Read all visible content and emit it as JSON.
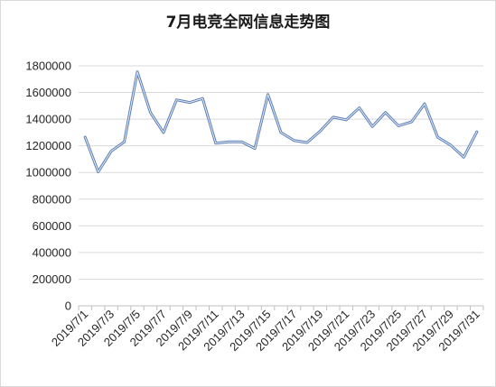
{
  "chart_data": {
    "type": "line",
    "title": "7月电竞全网信息走势图",
    "xlabel": "",
    "ylabel": "",
    "ylim": [
      0,
      1800000
    ],
    "yticks": [
      0,
      200000,
      400000,
      600000,
      800000,
      1000000,
      1200000,
      1400000,
      1600000,
      1800000
    ],
    "ytick_labels": [
      "0",
      "200000",
      "400000",
      "600000",
      "800000",
      "1000000",
      "1200000",
      "1400000",
      "1600000",
      "1800000"
    ],
    "grid": true,
    "legend": "none",
    "line_color": "#5b7fb7",
    "categories": [
      "2019/7/1",
      "2019/7/2",
      "2019/7/3",
      "2019/7/4",
      "2019/7/5",
      "2019/7/6",
      "2019/7/7",
      "2019/7/8",
      "2019/7/9",
      "2019/7/10",
      "2019/7/11",
      "2019/7/12",
      "2019/7/13",
      "2019/7/14",
      "2019/7/15",
      "2019/7/16",
      "2019/7/17",
      "2019/7/18",
      "2019/7/19",
      "2019/7/20",
      "2019/7/21",
      "2019/7/22",
      "2019/7/23",
      "2019/7/24",
      "2019/7/25",
      "2019/7/26",
      "2019/7/27",
      "2019/7/28",
      "2019/7/29",
      "2019/7/30",
      "2019/7/31"
    ],
    "xtick_labels": [
      "2019/7/1",
      "2019/7/3",
      "2019/7/5",
      "2019/7/7",
      "2019/7/9",
      "2019/7/11",
      "2019/7/13",
      "2019/7/15",
      "2019/7/17",
      "2019/7/19",
      "2019/7/21",
      "2019/7/23",
      "2019/7/25",
      "2019/7/27",
      "2019/7/29",
      "2019/7/31"
    ],
    "series": [
      {
        "values": [
          1265000,
          1005000,
          1160000,
          1230000,
          1755000,
          1450000,
          1300000,
          1545000,
          1525000,
          1555000,
          1220000,
          1230000,
          1230000,
          1180000,
          1585000,
          1300000,
          1240000,
          1225000,
          1310000,
          1415000,
          1395000,
          1485000,
          1345000,
          1450000,
          1350000,
          1380000,
          1515000,
          1265000,
          1205000,
          1115000,
          1305000
        ]
      }
    ]
  }
}
